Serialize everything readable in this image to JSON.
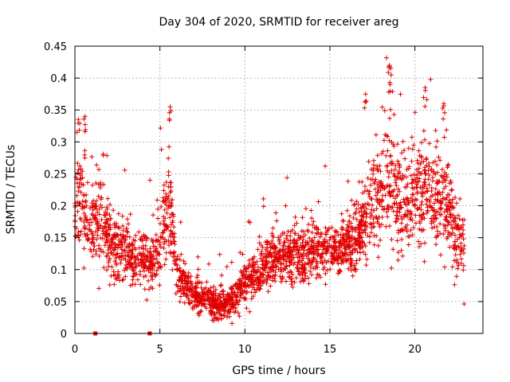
{
  "chart_data": {
    "type": "scatter",
    "title": "Day 304 of 2020, SRMTID for receiver areg",
    "xlabel": "GPS time / hours",
    "ylabel": "SRMTID / TECUs",
    "xlim": [
      0,
      24
    ],
    "ylim": [
      0,
      0.45
    ],
    "xticks": [
      0,
      5,
      10,
      15,
      20
    ],
    "xtick_labels": [
      "0",
      "5",
      "10",
      "15",
      "20"
    ],
    "yticks": [
      0,
      0.05,
      0.1,
      0.15,
      0.2,
      0.25,
      0.3,
      0.35,
      0.4,
      0.45
    ],
    "ytick_labels": [
      "0",
      "0.05",
      "0.1",
      "0.15",
      "0.2",
      "0.25",
      "0.3",
      "0.35",
      "0.4",
      "0.45"
    ],
    "grid": true,
    "marker": "+",
    "color": "#e00000",
    "x_axis_markers": [
      1.2,
      4.4
    ],
    "profile": {
      "description": "approximate median of the point cloud vs time",
      "x": [
        0,
        0.3,
        0.6,
        1,
        1.5,
        2,
        2.5,
        3,
        3.5,
        4,
        4.5,
        5,
        5.5,
        6,
        6.5,
        7,
        7.5,
        8,
        8.5,
        9,
        9.5,
        10,
        10.5,
        11,
        11.5,
        12,
        12.5,
        13,
        13.5,
        14,
        14.5,
        15,
        15.5,
        16,
        16.5,
        17,
        17.5,
        18,
        18.5,
        19,
        19.5,
        20,
        20.5,
        21,
        21.5,
        22,
        22.5,
        22.9
      ],
      "y": [
        0.2,
        0.22,
        0.19,
        0.16,
        0.17,
        0.15,
        0.13,
        0.12,
        0.11,
        0.12,
        0.11,
        0.15,
        0.2,
        0.1,
        0.07,
        0.06,
        0.055,
        0.05,
        0.045,
        0.045,
        0.06,
        0.075,
        0.09,
        0.1,
        0.11,
        0.12,
        0.12,
        0.125,
        0.12,
        0.125,
        0.13,
        0.13,
        0.13,
        0.14,
        0.15,
        0.17,
        0.19,
        0.22,
        0.24,
        0.2,
        0.2,
        0.21,
        0.22,
        0.22,
        0.2,
        0.19,
        0.15,
        0.13
      ],
      "spread": [
        0.05,
        0.06,
        0.06,
        0.05,
        0.05,
        0.05,
        0.04,
        0.04,
        0.035,
        0.035,
        0.035,
        0.06,
        0.07,
        0.03,
        0.025,
        0.02,
        0.02,
        0.02,
        0.02,
        0.02,
        0.025,
        0.03,
        0.03,
        0.03,
        0.035,
        0.035,
        0.035,
        0.035,
        0.035,
        0.035,
        0.035,
        0.035,
        0.035,
        0.04,
        0.045,
        0.05,
        0.06,
        0.07,
        0.08,
        0.06,
        0.06,
        0.06,
        0.07,
        0.07,
        0.06,
        0.06,
        0.05,
        0.05
      ]
    },
    "n_points": 2600,
    "peaks": [
      {
        "x": 0.2,
        "y": 0.335
      },
      {
        "x": 0.6,
        "y": 0.34
      },
      {
        "x": 5.6,
        "y": 0.355
      },
      {
        "x": 18.5,
        "y": 0.42
      },
      {
        "x": 18.6,
        "y": 0.405
      },
      {
        "x": 20.6,
        "y": 0.385
      },
      {
        "x": 21.7,
        "y": 0.36
      },
      {
        "x": 17.1,
        "y": 0.375
      }
    ]
  }
}
